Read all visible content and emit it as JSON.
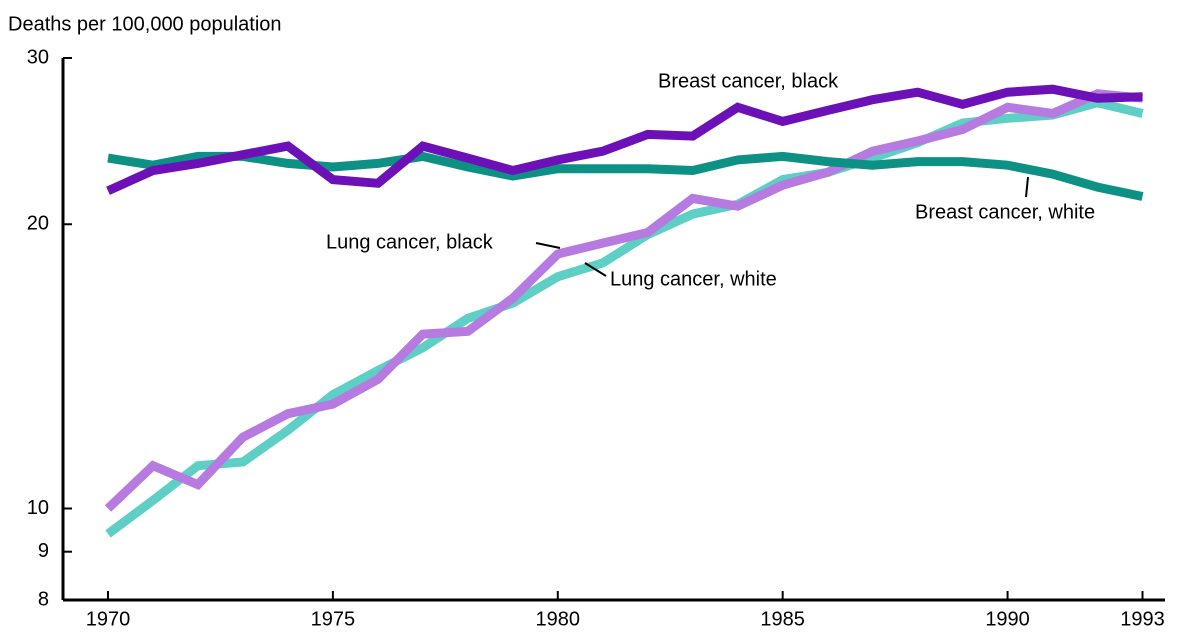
{
  "chart_data": {
    "type": "line",
    "y_label": "Deaths per 100,000 population",
    "x": [
      1970,
      1971,
      1972,
      1973,
      1974,
      1975,
      1976,
      1977,
      1978,
      1979,
      1980,
      1981,
      1982,
      1983,
      1984,
      1985,
      1986,
      1987,
      1988,
      1989,
      1990,
      1991,
      1992,
      1993
    ],
    "series": [
      {
        "name": "Lung cancer, white",
        "color": "#5ecfc4",
        "values": [
          9.4,
          10.2,
          11.1,
          11.2,
          12.1,
          13.2,
          14.0,
          14.8,
          15.9,
          16.5,
          17.6,
          18.2,
          19.5,
          20.5,
          21.0,
          22.3,
          22.7,
          23.5,
          24.4,
          25.6,
          25.9,
          26.1,
          26.9,
          26.2
        ]
      },
      {
        "name": "Lung cancer, black",
        "color": "#b77ae0",
        "values": [
          10.0,
          11.1,
          10.6,
          11.9,
          12.6,
          12.9,
          13.7,
          15.3,
          15.4,
          16.7,
          18.6,
          19.1,
          19.6,
          21.3,
          20.9,
          22.0,
          22.7,
          23.9,
          24.5,
          25.2,
          26.6,
          26.2,
          27.5,
          27.2
        ]
      },
      {
        "name": "Breast cancer, white",
        "color": "#0e9185",
        "values": [
          23.5,
          23.1,
          23.6,
          23.6,
          23.2,
          23.0,
          23.2,
          23.6,
          23.0,
          22.5,
          22.9,
          22.9,
          22.9,
          22.8,
          23.4,
          23.6,
          23.3,
          23.1,
          23.3,
          23.3,
          23.1,
          22.6,
          21.9,
          21.4
        ]
      },
      {
        "name": "Breast cancer, black",
        "color": "#6c10b8",
        "values": [
          21.7,
          22.8,
          23.2,
          23.7,
          24.2,
          22.3,
          22.1,
          24.2,
          23.5,
          22.8,
          23.4,
          23.9,
          24.9,
          24.8,
          26.6,
          25.7,
          26.4,
          27.1,
          27.6,
          26.8,
          27.6,
          27.8,
          27.2,
          27.3
        ]
      }
    ],
    "xlim": [
      1969,
      1993.5
    ],
    "xticks": [
      1970,
      1975,
      1980,
      1985,
      1990,
      1993
    ],
    "ylim": [
      8,
      30
    ],
    "yticks": [
      8,
      9,
      10,
      20,
      30
    ],
    "log_y": true,
    "grid": false
  }
}
